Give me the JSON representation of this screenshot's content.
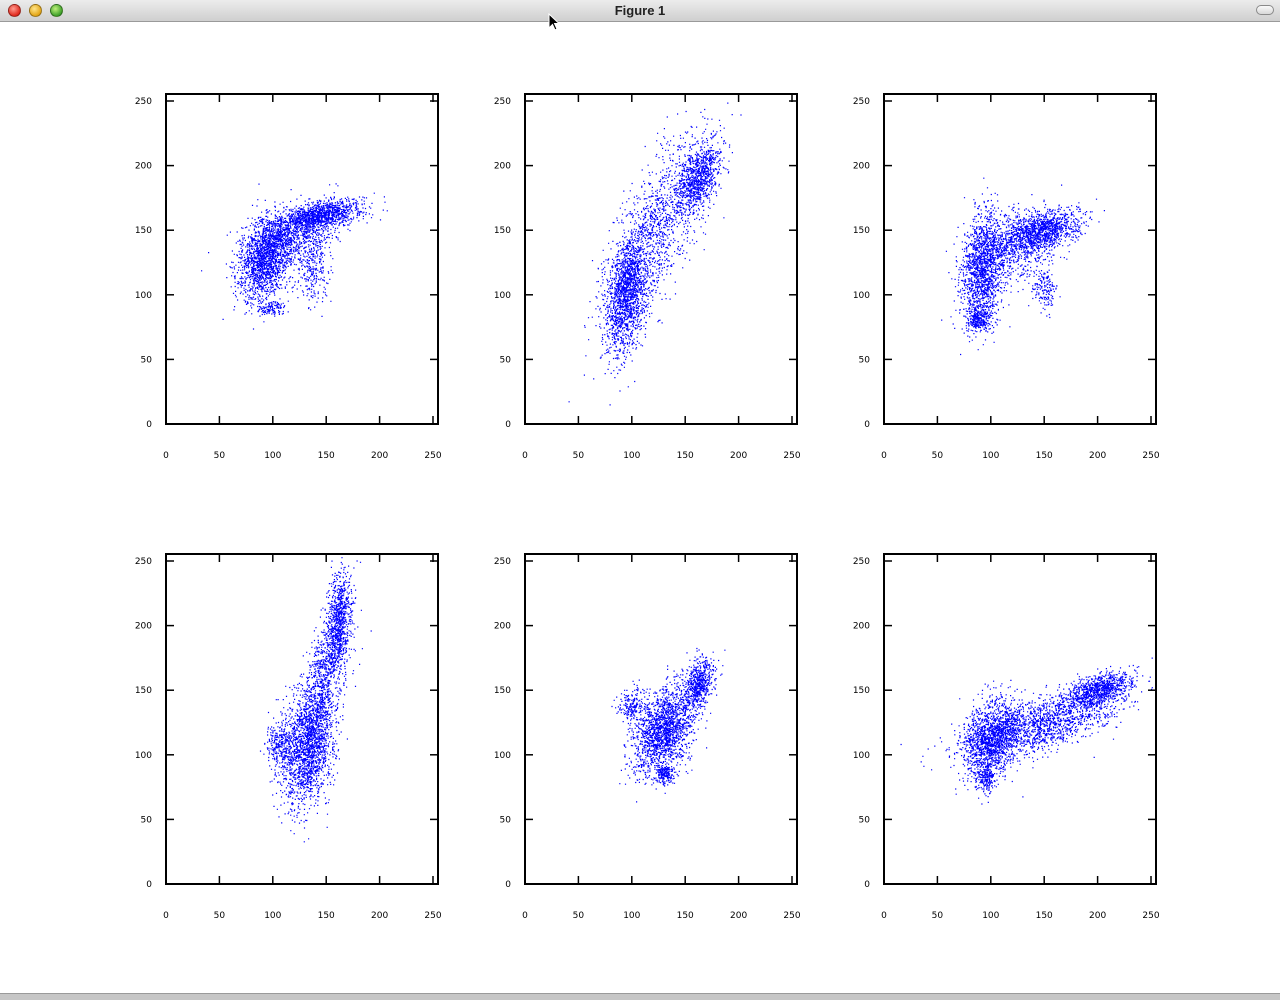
{
  "window": {
    "title": "Figure 1"
  },
  "colors": {
    "marker": "#0000ff",
    "axes": "#000000",
    "background": "#ffffff"
  },
  "icons": {
    "close": "close-icon",
    "minimize": "minimize-icon",
    "zoom": "zoom-icon",
    "toolbar_toggle": "toolbar-toggle-icon",
    "cursor": "mouse-pointer-icon"
  },
  "chart_data": [
    {
      "type": "scatter",
      "position": "row-1-col-1",
      "xlim": [
        0,
        255
      ],
      "ylim": [
        0,
        255
      ],
      "xticks": [
        "0",
        "50",
        "100",
        "150",
        "200",
        "250"
      ],
      "yticks": [
        "0",
        "50",
        "100",
        "150",
        "200",
        "250"
      ],
      "grid": false,
      "marker_color": "#0000ff",
      "clusters": [
        {
          "x": 92,
          "y": 128,
          "sx": 12,
          "sy": 17,
          "rho": 0.3,
          "n": 1600
        },
        {
          "x": 145,
          "y": 162,
          "sx": 20,
          "sy": 6,
          "rho": 0.5,
          "n": 1100
        },
        {
          "x": 118,
          "y": 145,
          "sx": 22,
          "sy": 12,
          "rho": 0.5,
          "n": 900
        },
        {
          "x": 138,
          "y": 120,
          "sx": 8,
          "sy": 12,
          "rho": 0,
          "n": 250
        },
        {
          "x": 100,
          "y": 90,
          "sx": 6,
          "sy": 3,
          "rho": 0,
          "n": 100
        }
      ]
    },
    {
      "type": "scatter",
      "position": "row-1-col-2",
      "xlim": [
        0,
        255
      ],
      "ylim": [
        0,
        255
      ],
      "xticks": [
        "0",
        "50",
        "100",
        "150",
        "200",
        "250"
      ],
      "yticks": [
        "0",
        "50",
        "100",
        "150",
        "200",
        "250"
      ],
      "grid": false,
      "marker_color": "#0000ff",
      "clusters": [
        {
          "x": 95,
          "y": 100,
          "sx": 10,
          "sy": 22,
          "rho": 0.3,
          "n": 1500
        },
        {
          "x": 162,
          "y": 190,
          "sx": 10,
          "sy": 14,
          "rho": 0.5,
          "n": 900
        },
        {
          "x": 122,
          "y": 150,
          "sx": 25,
          "sy": 38,
          "rho": 0.75,
          "n": 1300
        }
      ]
    },
    {
      "type": "scatter",
      "position": "row-1-col-3",
      "xlim": [
        0,
        255
      ],
      "ylim": [
        0,
        255
      ],
      "xticks": [
        "0",
        "50",
        "100",
        "150",
        "200",
        "250"
      ],
      "yticks": [
        "0",
        "50",
        "100",
        "150",
        "200",
        "250"
      ],
      "grid": false,
      "marker_color": "#0000ff",
      "clusters": [
        {
          "x": 92,
          "y": 120,
          "sx": 10,
          "sy": 22,
          "rho": 0.2,
          "n": 1500
        },
        {
          "x": 150,
          "y": 150,
          "sx": 17,
          "sy": 8,
          "rho": 0.4,
          "n": 1000
        },
        {
          "x": 122,
          "y": 138,
          "sx": 20,
          "sy": 14,
          "rho": 0.3,
          "n": 800
        },
        {
          "x": 88,
          "y": 82,
          "sx": 5,
          "sy": 4,
          "rho": 0,
          "n": 250
        },
        {
          "x": 150,
          "y": 105,
          "sx": 5,
          "sy": 8,
          "rho": 0,
          "n": 150
        }
      ]
    },
    {
      "type": "scatter",
      "position": "row-2-col-1",
      "xlim": [
        0,
        255
      ],
      "ylim": [
        0,
        255
      ],
      "xticks": [
        "0",
        "50",
        "100",
        "150",
        "200",
        "250"
      ],
      "yticks": [
        "0",
        "50",
        "100",
        "150",
        "200",
        "250"
      ],
      "grid": false,
      "marker_color": "#0000ff",
      "clusters": [
        {
          "x": 132,
          "y": 105,
          "sx": 12,
          "sy": 22,
          "rho": 0.2,
          "n": 1600
        },
        {
          "x": 162,
          "y": 205,
          "sx": 6,
          "sy": 18,
          "rho": 0.3,
          "n": 800
        },
        {
          "x": 145,
          "y": 150,
          "sx": 12,
          "sy": 30,
          "rho": 0.6,
          "n": 1000
        },
        {
          "x": 105,
          "y": 108,
          "sx": 6,
          "sy": 8,
          "rho": 0,
          "n": 250
        }
      ]
    },
    {
      "type": "scatter",
      "position": "row-2-col-2",
      "xlim": [
        0,
        255
      ],
      "ylim": [
        0,
        255
      ],
      "xticks": [
        "0",
        "50",
        "100",
        "150",
        "200",
        "250"
      ],
      "yticks": [
        "0",
        "50",
        "100",
        "150",
        "200",
        "250"
      ],
      "grid": false,
      "marker_color": "#0000ff",
      "clusters": [
        {
          "x": 130,
          "y": 120,
          "sx": 14,
          "sy": 17,
          "rho": 0.35,
          "n": 1800
        },
        {
          "x": 162,
          "y": 155,
          "sx": 7,
          "sy": 9,
          "rho": 0.3,
          "n": 600
        },
        {
          "x": 130,
          "y": 85,
          "sx": 5,
          "sy": 4,
          "rho": 0,
          "n": 200
        },
        {
          "x": 100,
          "y": 138,
          "sx": 6,
          "sy": 7,
          "rho": 0,
          "n": 200
        }
      ]
    },
    {
      "type": "scatter",
      "position": "row-2-col-3",
      "xlim": [
        0,
        255
      ],
      "ylim": [
        0,
        255
      ],
      "xticks": [
        "0",
        "50",
        "100",
        "150",
        "200",
        "250"
      ],
      "yticks": [
        "0",
        "50",
        "100",
        "150",
        "200",
        "250"
      ],
      "grid": false,
      "marker_color": "#0000ff",
      "clusters": [
        {
          "x": 100,
          "y": 112,
          "sx": 13,
          "sy": 16,
          "rho": 0.3,
          "n": 1500
        },
        {
          "x": 200,
          "y": 150,
          "sx": 15,
          "sy": 7,
          "rho": 0.5,
          "n": 900
        },
        {
          "x": 150,
          "y": 125,
          "sx": 35,
          "sy": 13,
          "rho": 0.6,
          "n": 1500
        },
        {
          "x": 95,
          "y": 82,
          "sx": 4,
          "sy": 4,
          "rho": 0,
          "n": 150
        }
      ]
    }
  ]
}
